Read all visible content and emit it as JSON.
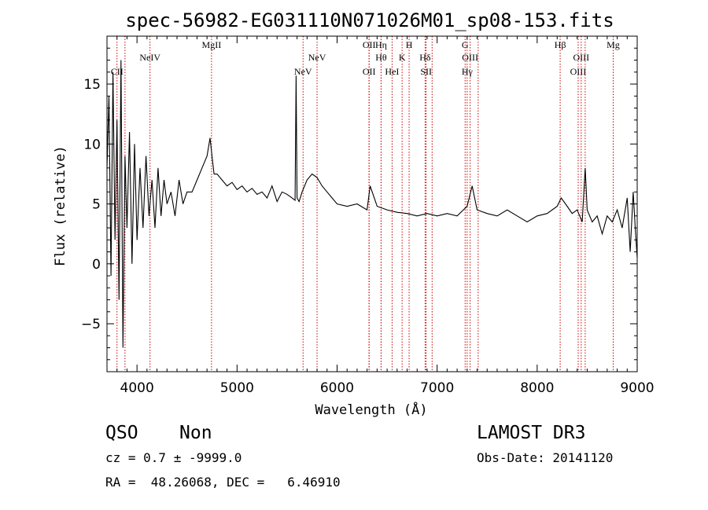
{
  "chart_data": {
    "type": "line",
    "title": "spec-56982-EG031110N071026M01_sp08-153.fits",
    "xlabel": "Wavelength (Å)",
    "ylabel": "Flux (relative)",
    "xlim": [
      3700,
      9000
    ],
    "ylim": [
      -9,
      19
    ],
    "x_ticks": [
      4000,
      5000,
      6000,
      7000,
      8000,
      9000
    ],
    "y_ticks": [
      -5,
      0,
      5,
      10,
      15
    ],
    "grid": false,
    "line_color": "#000000",
    "marker_color": "#cc0000",
    "series": [
      {
        "x": [
          3700,
          3720,
          3740,
          3760,
          3780,
          3800,
          3820,
          3840,
          3860,
          3880,
          3900,
          3925,
          3950,
          3975,
          4000,
          4030,
          4060,
          4090,
          4120,
          4150,
          4180,
          4210,
          4240,
          4270,
          4300,
          4340,
          4380,
          4420,
          4460,
          4500,
          4550,
          4600,
          4650,
          4700,
          4730,
          4750,
          4770,
          4800,
          4850,
          4900,
          4950,
          5000,
          5050,
          5100,
          5150,
          5200,
          5250,
          5300,
          5350,
          5400,
          5450,
          5500,
          5550,
          5580,
          5590,
          5600,
          5620,
          5650,
          5700,
          5750,
          5800,
          5850,
          5900,
          5950,
          6000,
          6100,
          6200,
          6300,
          6330,
          6400,
          6500,
          6600,
          6700,
          6800,
          6900,
          7000,
          7100,
          7200,
          7300,
          7350,
          7400,
          7500,
          7600,
          7700,
          7800,
          7900,
          8000,
          8100,
          8200,
          8240,
          8300,
          8350,
          8400,
          8450,
          8480,
          8500,
          8550,
          8600,
          8650,
          8700,
          8750,
          8800,
          8850,
          8900,
          8930,
          8960,
          8980,
          9000
        ],
        "y": [
          8,
          14,
          -1,
          16,
          2,
          12,
          -3,
          17,
          -7,
          9,
          3,
          11,
          0,
          10,
          2,
          8,
          3,
          9,
          4,
          7,
          3,
          8,
          4,
          7,
          5,
          6,
          4,
          7,
          5,
          6,
          6,
          7,
          8,
          9,
          10.5,
          9,
          7.5,
          7.5,
          7,
          6.5,
          6.8,
          6.2,
          6.5,
          6,
          6.3,
          5.8,
          6,
          5.5,
          6.5,
          5.2,
          6,
          5.8,
          5.5,
          5.3,
          15.7,
          5.5,
          5.2,
          6,
          7,
          7.5,
          7.2,
          6.5,
          6,
          5.5,
          5,
          4.8,
          5,
          4.5,
          6.5,
          4.8,
          4.5,
          4.3,
          4.2,
          4,
          4.2,
          4,
          4.2,
          4,
          4.8,
          6.5,
          4.5,
          4.2,
          4,
          4.5,
          4,
          3.5,
          4,
          4.2,
          4.8,
          5.5,
          4.8,
          4.2,
          4.5,
          3.5,
          8,
          4.5,
          3.5,
          4,
          2.5,
          4,
          3.5,
          4.5,
          3,
          5.5,
          1,
          6,
          3,
          0.5
        ]
      }
    ],
    "line_markers": [
      {
        "x": 3800,
        "label": "CII",
        "row": 3
      },
      {
        "x": 3880,
        "label": "",
        "row": 0
      },
      {
        "x": 4130,
        "label": "NeIV",
        "row": 2
      },
      {
        "x": 4745,
        "label": "MgII",
        "row": 1
      },
      {
        "x": 5660,
        "label": "NeV",
        "row": 3
      },
      {
        "x": 5800,
        "label": "NeV",
        "row": 2
      },
      {
        "x": 6320,
        "label": "OII",
        "row": 1
      },
      {
        "x": 6320,
        "label": "OII",
        "row": 3
      },
      {
        "x": 6440,
        "label": "Hη",
        "row": 1
      },
      {
        "x": 6440,
        "label": "Hθ",
        "row": 2
      },
      {
        "x": 6550,
        "label": "HeI",
        "row": 3
      },
      {
        "x": 6650,
        "label": "K",
        "row": 2
      },
      {
        "x": 6720,
        "label": "H",
        "row": 1
      },
      {
        "x": 6880,
        "label": "Hδ",
        "row": 2
      },
      {
        "x": 6890,
        "label": "SII",
        "row": 3
      },
      {
        "x": 6950,
        "label": "",
        "row": 0
      },
      {
        "x": 7280,
        "label": "G",
        "row": 1
      },
      {
        "x": 7330,
        "label": "OIII",
        "row": 2
      },
      {
        "x": 7300,
        "label": "Hγ",
        "row": 3
      },
      {
        "x": 7410,
        "label": "",
        "row": 0
      },
      {
        "x": 8230,
        "label": "Hβ",
        "row": 1
      },
      {
        "x": 8410,
        "label": "OIII",
        "row": 3
      },
      {
        "x": 8440,
        "label": "OIII",
        "row": 2
      },
      {
        "x": 8480,
        "label": "",
        "row": 0
      },
      {
        "x": 8760,
        "label": "Mg",
        "row": 1
      }
    ]
  },
  "info": {
    "class": "QSO",
    "subclass": "Non",
    "cz": "cz = 0.7 ± -9999.0",
    "coords": "RA =  48.26068, DEC =   6.46910",
    "survey": "LAMOST DR3",
    "obsdate": "Obs-Date: 20141120"
  }
}
